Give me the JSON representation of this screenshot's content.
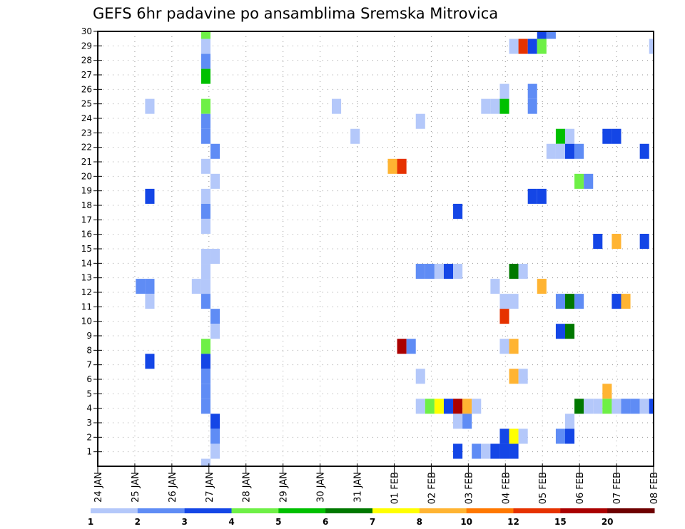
{
  "chart_data": {
    "type": "heatmap",
    "title": "GEFS 6hr padavine po ansamblima Sremska Mitrovica",
    "xlabel": "",
    "ylabel": "",
    "y_ticks": [
      "1",
      "2",
      "3",
      "4",
      "5",
      "6",
      "7",
      "8",
      "9",
      "10",
      "11",
      "12",
      "13",
      "14",
      "15",
      "16",
      "17",
      "18",
      "19",
      "20",
      "21",
      "22",
      "23",
      "24",
      "25",
      "26",
      "27",
      "28",
      "29",
      "30"
    ],
    "x_ticks": [
      "24 JAN",
      "25 JAN",
      "26 JAN",
      "27 JAN",
      "28 JAN",
      "29 JAN",
      "30 JAN",
      "31 JAN",
      "01 FEB",
      "02 FEB",
      "03 FEB",
      "04 FEB",
      "05 FEB",
      "06 FEB",
      "07 FEB",
      "08 FEB"
    ],
    "x_step_hours": 6,
    "grid": true,
    "legend": {
      "placement": "bottom",
      "labels": [
        "1",
        "2",
        "3",
        "4",
        "5",
        "6",
        "7",
        "8",
        "10",
        "12",
        "15",
        "20"
      ],
      "colors": [
        "#b4c8fa",
        "#5f8cf5",
        "#1446e6",
        "#6ef046",
        "#00c000",
        "#007800",
        "#ffff00",
        "#ffb432",
        "#ff7800",
        "#e63200",
        "#aa0000",
        "#6e0000"
      ]
    },
    "cells_format": [
      "member",
      "step",
      "category"
    ],
    "cells": [
      [
        30,
        11,
        3
      ],
      [
        29,
        11,
        0
      ],
      [
        28,
        11,
        1
      ],
      [
        27,
        11,
        4
      ],
      [
        25,
        5,
        0
      ],
      [
        25,
        11,
        3
      ],
      [
        24,
        11,
        1
      ],
      [
        23,
        11,
        1
      ],
      [
        22,
        12,
        1
      ],
      [
        21,
        11,
        0
      ],
      [
        20,
        12,
        0
      ],
      [
        19,
        11,
        0
      ],
      [
        19,
        5,
        2
      ],
      [
        18,
        11,
        1
      ],
      [
        17,
        11,
        0
      ],
      [
        15,
        11,
        0
      ],
      [
        15,
        12,
        0
      ],
      [
        14,
        11,
        0
      ],
      [
        13,
        4,
        1
      ],
      [
        13,
        5,
        1
      ],
      [
        13,
        10,
        0
      ],
      [
        13,
        11,
        0
      ],
      [
        12,
        5,
        0
      ],
      [
        12,
        11,
        1
      ],
      [
        11,
        12,
        1
      ],
      [
        10,
        12,
        0
      ],
      [
        9,
        11,
        3
      ],
      [
        8,
        5,
        2
      ],
      [
        8,
        11,
        2
      ],
      [
        7,
        11,
        1
      ],
      [
        6,
        11,
        1
      ],
      [
        5,
        11,
        1
      ],
      [
        4,
        12,
        2
      ],
      [
        3,
        12,
        1
      ],
      [
        2,
        12,
        0
      ],
      [
        1,
        11,
        0
      ],
      [
        25,
        25,
        0
      ],
      [
        24,
        34,
        0
      ],
      [
        23,
        27,
        0
      ],
      [
        21,
        31,
        7
      ],
      [
        21,
        32,
        9
      ],
      [
        18,
        38,
        2
      ],
      [
        14,
        34,
        1
      ],
      [
        14,
        35,
        1
      ],
      [
        14,
        36,
        0
      ],
      [
        14,
        37,
        2
      ],
      [
        14,
        38,
        0
      ],
      [
        13,
        42,
        0
      ],
      [
        9,
        32,
        10
      ],
      [
        9,
        33,
        1
      ],
      [
        7,
        34,
        0
      ],
      [
        5,
        34,
        0
      ],
      [
        5,
        35,
        3
      ],
      [
        5,
        36,
        6
      ],
      [
        5,
        37,
        2
      ],
      [
        5,
        38,
        10
      ],
      [
        5,
        39,
        7
      ],
      [
        5,
        40,
        0
      ],
      [
        4,
        38,
        0
      ],
      [
        4,
        39,
        1
      ],
      [
        2,
        38,
        2
      ],
      [
        2,
        40,
        1
      ],
      [
        2,
        41,
        0
      ],
      [
        2,
        42,
        2
      ],
      [
        2,
        43,
        2
      ],
      [
        2,
        44,
        2
      ],
      [
        30,
        47,
        2
      ],
      [
        30,
        48,
        1
      ],
      [
        29,
        44,
        0
      ],
      [
        29,
        45,
        9
      ],
      [
        29,
        46,
        2
      ],
      [
        29,
        47,
        3
      ],
      [
        29,
        59,
        0
      ],
      [
        26,
        43,
        0
      ],
      [
        26,
        46,
        1
      ],
      [
        25,
        41,
        0
      ],
      [
        25,
        42,
        0
      ],
      [
        25,
        43,
        4
      ],
      [
        25,
        46,
        1
      ],
      [
        23,
        49,
        4
      ],
      [
        23,
        50,
        0
      ],
      [
        23,
        54,
        2
      ],
      [
        23,
        55,
        2
      ],
      [
        22,
        48,
        0
      ],
      [
        22,
        49,
        0
      ],
      [
        22,
        50,
        2
      ],
      [
        22,
        51,
        1
      ],
      [
        22,
        58,
        2
      ],
      [
        20,
        51,
        3
      ],
      [
        20,
        52,
        1
      ],
      [
        19,
        46,
        2
      ],
      [
        19,
        47,
        2
      ],
      [
        16,
        53,
        2
      ],
      [
        16,
        55,
        7
      ],
      [
        16,
        58,
        2
      ],
      [
        14,
        44,
        5
      ],
      [
        14,
        45,
        0
      ],
      [
        13,
        47,
        7
      ],
      [
        12,
        43,
        0
      ],
      [
        12,
        44,
        0
      ],
      [
        12,
        49,
        1
      ],
      [
        12,
        50,
        5
      ],
      [
        12,
        51,
        1
      ],
      [
        12,
        55,
        2
      ],
      [
        12,
        56,
        7
      ],
      [
        11,
        43,
        9
      ],
      [
        10,
        49,
        2
      ],
      [
        10,
        50,
        5
      ],
      [
        9,
        43,
        0
      ],
      [
        9,
        44,
        7
      ],
      [
        7,
        44,
        7
      ],
      [
        7,
        45,
        0
      ],
      [
        6,
        54,
        7
      ],
      [
        5,
        51,
        5
      ],
      [
        5,
        52,
        0
      ],
      [
        5,
        53,
        0
      ],
      [
        5,
        54,
        3
      ],
      [
        5,
        55,
        0
      ],
      [
        5,
        56,
        1
      ],
      [
        5,
        57,
        1
      ],
      [
        5,
        58,
        0
      ],
      [
        5,
        59,
        2
      ],
      [
        4,
        50,
        0
      ],
      [
        3,
        43,
        2
      ],
      [
        3,
        44,
        6
      ],
      [
        3,
        45,
        0
      ],
      [
        3,
        49,
        1
      ],
      [
        3,
        50,
        2
      ]
    ]
  }
}
